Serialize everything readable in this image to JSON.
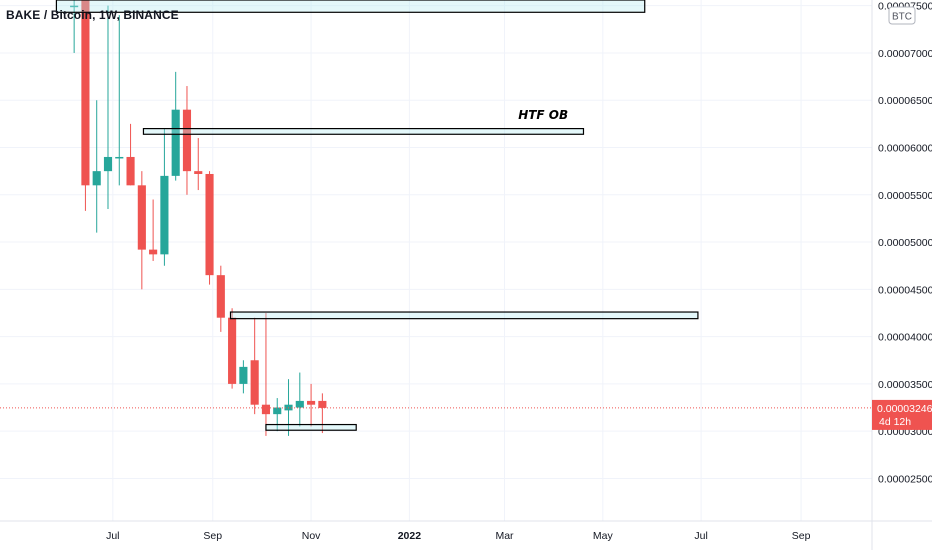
{
  "header": {
    "symbol_title": "BAKE / Bitcoin, 1W, BINANCE"
  },
  "price_axis": {
    "currency_badge": "BTC",
    "last_price_label": "0.00003246",
    "countdown_label": "4d 12h",
    "last_price_color": "#ef5350"
  },
  "chart_data": {
    "type": "candlestick",
    "title": "BAKE / Bitcoin, 1W, BINANCE",
    "y_ticks": [
      {
        "value": 2.5e-05,
        "label": "0.00002500"
      },
      {
        "value": 3e-05,
        "label": "0.00003000"
      },
      {
        "value": 3.5e-05,
        "label": "0.00003500"
      },
      {
        "value": 4e-05,
        "label": "0.00004000"
      },
      {
        "value": 4.5e-05,
        "label": "0.00004500"
      },
      {
        "value": 5e-05,
        "label": "0.00005000"
      },
      {
        "value": 5.5e-05,
        "label": "0.00005500"
      },
      {
        "value": 6e-05,
        "label": "0.00006000"
      },
      {
        "value": 6.5e-05,
        "label": "0.00006500"
      },
      {
        "value": 7e-05,
        "label": "0.00007000"
      },
      {
        "value": 7.5e-05,
        "label": "0.00007500"
      }
    ],
    "x_ticks": [
      {
        "date": "2021-07-01",
        "label": "Jul"
      },
      {
        "date": "2021-09-01",
        "label": "Sep"
      },
      {
        "date": "2021-11-01",
        "label": "Nov"
      },
      {
        "date": "2022-01-01",
        "label": "2022",
        "bold": true
      },
      {
        "date": "2022-03-01",
        "label": "Mar"
      },
      {
        "date": "2022-05-01",
        "label": "May"
      },
      {
        "date": "2022-07-01",
        "label": "Jul"
      },
      {
        "date": "2022-09-01",
        "label": "Sep"
      }
    ],
    "ylim": [
      2.05e-05,
      7.56e-05
    ],
    "xlim": [
      "2021-04-22",
      "2022-10-15"
    ],
    "up_color": "#26a69a",
    "down_color": "#ef5350",
    "last_price": 3.246e-05,
    "candles": [
      {
        "date": "2021-06-07",
        "open": 7.5e-05,
        "high": 7.65e-05,
        "low": 7e-05,
        "close": 7.5e-05
      },
      {
        "date": "2021-06-14",
        "open": 7.56e-05,
        "high": 7.56e-05,
        "low": 5.33e-05,
        "close": 5.6e-05
      },
      {
        "date": "2021-06-21",
        "open": 5.6e-05,
        "high": 6.5e-05,
        "low": 5.1e-05,
        "close": 5.75e-05
      },
      {
        "date": "2021-06-28",
        "open": 5.75e-05,
        "high": 7.5e-05,
        "low": 5.35e-05,
        "close": 5.9e-05
      },
      {
        "date": "2021-07-05",
        "open": 5.9e-05,
        "high": 7.4e-05,
        "low": 5.6e-05,
        "close": 5.9e-05
      },
      {
        "date": "2021-07-12",
        "open": 5.9e-05,
        "high": 6.25e-05,
        "low": 5.6e-05,
        "close": 5.6e-05
      },
      {
        "date": "2021-07-19",
        "open": 5.6e-05,
        "high": 5.75e-05,
        "low": 4.5e-05,
        "close": 4.92e-05
      },
      {
        "date": "2021-07-26",
        "open": 4.92e-05,
        "high": 5.45e-05,
        "low": 4.8e-05,
        "close": 4.87e-05
      },
      {
        "date": "2021-08-02",
        "open": 4.87e-05,
        "high": 6.2e-05,
        "low": 4.75e-05,
        "close": 5.7e-05
      },
      {
        "date": "2021-08-09",
        "open": 5.7e-05,
        "high": 6.8e-05,
        "low": 5.65e-05,
        "close": 6.4e-05
      },
      {
        "date": "2021-08-16",
        "open": 6.4e-05,
        "high": 6.65e-05,
        "low": 5.5e-05,
        "close": 5.75e-05
      },
      {
        "date": "2021-08-23",
        "open": 5.75e-05,
        "high": 6.1e-05,
        "low": 5.55e-05,
        "close": 5.72e-05
      },
      {
        "date": "2021-08-30",
        "open": 5.72e-05,
        "high": 5.75e-05,
        "low": 4.55e-05,
        "close": 4.65e-05
      },
      {
        "date": "2021-09-06",
        "open": 4.65e-05,
        "high": 4.75e-05,
        "low": 4.05e-05,
        "close": 4.2e-05
      },
      {
        "date": "2021-09-13",
        "open": 4.2e-05,
        "high": 4.3e-05,
        "low": 3.45e-05,
        "close": 3.5e-05
      },
      {
        "date": "2021-09-20",
        "open": 3.5e-05,
        "high": 3.75e-05,
        "low": 3.4e-05,
        "close": 3.68e-05
      },
      {
        "date": "2021-09-27",
        "open": 3.75e-05,
        "high": 4.2e-05,
        "low": 3.18e-05,
        "close": 3.28e-05
      },
      {
        "date": "2021-10-04",
        "open": 3.28e-05,
        "high": 4.25e-05,
        "low": 2.95e-05,
        "close": 3.18e-05
      },
      {
        "date": "2021-10-11",
        "open": 3.18e-05,
        "high": 3.35e-05,
        "low": 3e-05,
        "close": 3.25e-05
      },
      {
        "date": "2021-10-18",
        "open": 3.22e-05,
        "high": 3.55e-05,
        "low": 2.95e-05,
        "close": 3.28e-05
      },
      {
        "date": "2021-10-25",
        "open": 3.25e-05,
        "high": 3.62e-05,
        "low": 3.05e-05,
        "close": 3.32e-05
      },
      {
        "date": "2021-11-01",
        "open": 3.32e-05,
        "high": 3.5e-05,
        "low": 3.05e-05,
        "close": 3.28e-05
      },
      {
        "date": "2021-11-08",
        "open": 3.32e-05,
        "high": 3.4e-05,
        "low": 2.98e-05,
        "close": 3.246e-05
      }
    ],
    "annotations": [
      {
        "kind": "rectangle",
        "start": "2021-05-27",
        "end": "2022-05-27",
        "top": 7.56e-05,
        "bottom": 7.43e-05
      },
      {
        "kind": "rectangle",
        "start": "2021-07-20",
        "end": "2022-04-19",
        "top": 6.2e-05,
        "bottom": 6.14e-05
      },
      {
        "kind": "text",
        "text": "HTF OB",
        "date": "2022-03-25",
        "price": 6.3e-05
      },
      {
        "kind": "rectangle",
        "start": "2021-09-12",
        "end": "2022-06-29",
        "top": 4.26e-05,
        "bottom": 4.19e-05
      },
      {
        "kind": "rectangle",
        "start": "2021-10-04",
        "end": "2021-11-29",
        "top": 3.07e-05,
        "bottom": 3.01e-05
      }
    ]
  }
}
